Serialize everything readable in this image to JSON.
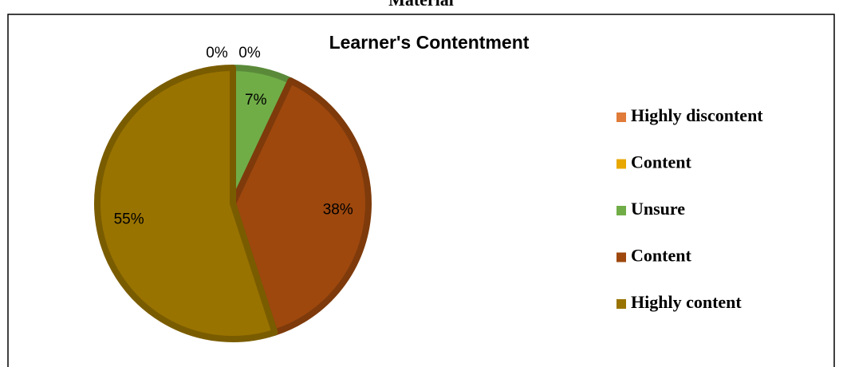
{
  "chart_data": {
    "type": "pie",
    "caption": "Material",
    "title": "Learner's Contentment",
    "categories": [
      "Highly discontent",
      "Content",
      "Unsure",
      "Content",
      "Highly content"
    ],
    "values": [
      0,
      0,
      7,
      38,
      55
    ],
    "value_labels": [
      "0%",
      "0%",
      "7%",
      "38%",
      "55%"
    ],
    "colors": [
      "#e07b39",
      "#e8a800",
      "#70ad47",
      "#9e480e",
      "#997300"
    ],
    "legend": "right"
  }
}
